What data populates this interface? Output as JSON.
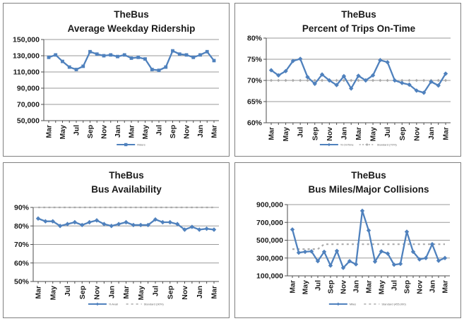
{
  "page": {
    "background": "#FFFFFF"
  },
  "colors": {
    "series_blue": "#4F81BD",
    "target_gray": "#ABABAB",
    "gridline": "#9A9A9A",
    "axis": "#4D4D4D",
    "tick_label": "#1A1A1A",
    "panel_border": "#808080"
  },
  "charts": [
    {
      "title_line1": "TheBus",
      "title_line2": "Average Weekday Ridership",
      "chart_data": {
        "type": "line",
        "x_tick_labels": [
          "Mar",
          "May",
          "Jul",
          "Sep",
          "Nov",
          "Jan",
          "Mar",
          "May",
          "Jul",
          "Sep",
          "Nov",
          "Jan",
          "Mar"
        ],
        "y_tick_labels": [
          "150,000",
          "130,000",
          "110,000",
          "90,000",
          "70,000",
          "50,000"
        ],
        "y_ticks": [
          150000,
          130000,
          110000,
          90000,
          70000,
          50000
        ],
        "ylim": [
          50000,
          150000
        ],
        "grid": true,
        "legend_position": "bottom-center",
        "series": [
          {
            "name": "Riders",
            "role": "actual",
            "color": "#4F81BD",
            "marker": "square",
            "dashed": false,
            "values": [
              128000,
              131000,
              123000,
              116000,
              113000,
              117000,
              135000,
              132000,
              130000,
              131000,
              129000,
              131000,
              127000,
              128000,
              126000,
              113000,
              112000,
              116000,
              136000,
              132000,
              131000,
              128000,
              131000,
              135000,
              124000
            ]
          }
        ]
      }
    },
    {
      "title_line1": "TheBus",
      "title_line2": "Percent of Trips On-Time",
      "chart_data": {
        "type": "line",
        "x_tick_labels": [
          "Mar",
          "May",
          "Jul",
          "Sep",
          "Nov",
          "Jan",
          "Mar",
          "May",
          "Jul",
          "Sep",
          "Nov",
          "Jan",
          "Mar"
        ],
        "y_tick_labels": [
          "80%",
          "75%",
          "70%",
          "65%",
          "60%"
        ],
        "y_ticks": [
          80,
          75,
          70,
          65,
          60
        ],
        "ylim": [
          60,
          80
        ],
        "grid": true,
        "legend_position": "bottom-center",
        "series": [
          {
            "name": "% OnTime",
            "role": "actual",
            "color": "#4F81BD",
            "marker": "diamond",
            "dashed": false,
            "values": [
              72.4,
              71.2,
              72.2,
              74.6,
              75.1,
              70.8,
              69.2,
              71.4,
              70,
              68.9,
              71,
              68.1,
              71.1,
              70,
              71.2,
              74.8,
              74.3,
              70,
              69.4,
              69,
              67.6,
              67.1,
              69.7,
              68.8,
              71.6
            ]
          },
          {
            "name": "Standard (70%)",
            "role": "target",
            "color": "#ABABAB",
            "marker": "diamond",
            "dashed": true,
            "values": [
              70,
              70,
              70,
              70,
              70,
              70,
              70,
              70,
              70,
              70,
              70,
              70,
              70,
              70,
              70,
              70,
              70,
              70,
              70,
              70,
              70,
              70,
              70,
              70,
              70
            ]
          }
        ]
      }
    },
    {
      "title_line1": "TheBus",
      "title_line2": "Bus Availability",
      "chart_data": {
        "type": "line",
        "x_tick_labels": [
          "Mar",
          "May",
          "Jul",
          "Sep",
          "Nov",
          "Jan",
          "Mar",
          "May",
          "Jul",
          "Sep",
          "Nov",
          "Jan",
          "Mar"
        ],
        "y_tick_labels": [
          "90%",
          "80%",
          "70%",
          "60%",
          "50%"
        ],
        "y_ticks": [
          90,
          80,
          70,
          60,
          50
        ],
        "ylim": [
          50,
          90
        ],
        "grid": true,
        "legend_position": "bottom-center",
        "series": [
          {
            "name": "% Avail",
            "role": "actual",
            "color": "#4F81BD",
            "marker": "diamond",
            "dashed": false,
            "values": [
              84,
              82.5,
              82.5,
              80,
              81,
              82,
              80.5,
              82,
              83,
              81,
              80,
              81,
              82,
              80.5,
              80.5,
              80.5,
              83.5,
              82,
              82,
              81,
              78,
              79.5,
              78,
              78.5,
              78
            ]
          },
          {
            "name": "Standard (90%)",
            "role": "target",
            "color": "#ABABAB",
            "marker": "none",
            "dashed": true,
            "values": [
              90,
              90,
              90,
              90,
              90,
              90,
              90,
              90,
              90,
              90,
              90,
              90,
              90,
              90,
              90,
              90,
              90,
              90,
              90,
              90,
              90,
              90,
              90,
              90,
              90
            ]
          }
        ]
      }
    },
    {
      "title_line1": "TheBus",
      "title_line2": "Bus Miles/Major Collisions",
      "chart_data": {
        "type": "line",
        "x_tick_labels": [
          "Mar",
          "May",
          "Jul",
          "Sep",
          "Nov",
          "Jan",
          "Mar",
          "May",
          "Jul",
          "Sep",
          "Nov",
          "Jan",
          "Mar"
        ],
        "y_tick_labels": [
          "900,000",
          "700,000",
          "500,000",
          "300,000",
          "100,000"
        ],
        "y_ticks": [
          900000,
          700000,
          500000,
          300000,
          100000
        ],
        "ylim": [
          100000,
          900000
        ],
        "grid": true,
        "legend_position": "bottom-center",
        "series": [
          {
            "name": "Miles",
            "role": "actual",
            "color": "#4F81BD",
            "marker": "diamond",
            "dashed": false,
            "values": [
              620000,
              360000,
              370000,
              375000,
              265000,
              370000,
              215000,
              380000,
              190000,
              265000,
              230000,
              830000,
              610000,
              260000,
              375000,
              350000,
              225000,
              235000,
              595000,
              370000,
              285000,
              300000,
              455000,
              270000,
              300000
            ]
          },
          {
            "name": "Standard (455,000)",
            "role": "target",
            "color": "#ABABAB",
            "marker": "none",
            "dashed": true,
            "values": [
              400000,
              400000,
              400000,
              400000,
              400000,
              455000,
              455000,
              455000,
              455000,
              455000,
              455000,
              455000,
              455000,
              455000,
              455000,
              455000,
              455000,
              455000,
              455000,
              455000,
              455000,
              455000,
              455000,
              455000,
              455000
            ]
          }
        ]
      }
    }
  ]
}
